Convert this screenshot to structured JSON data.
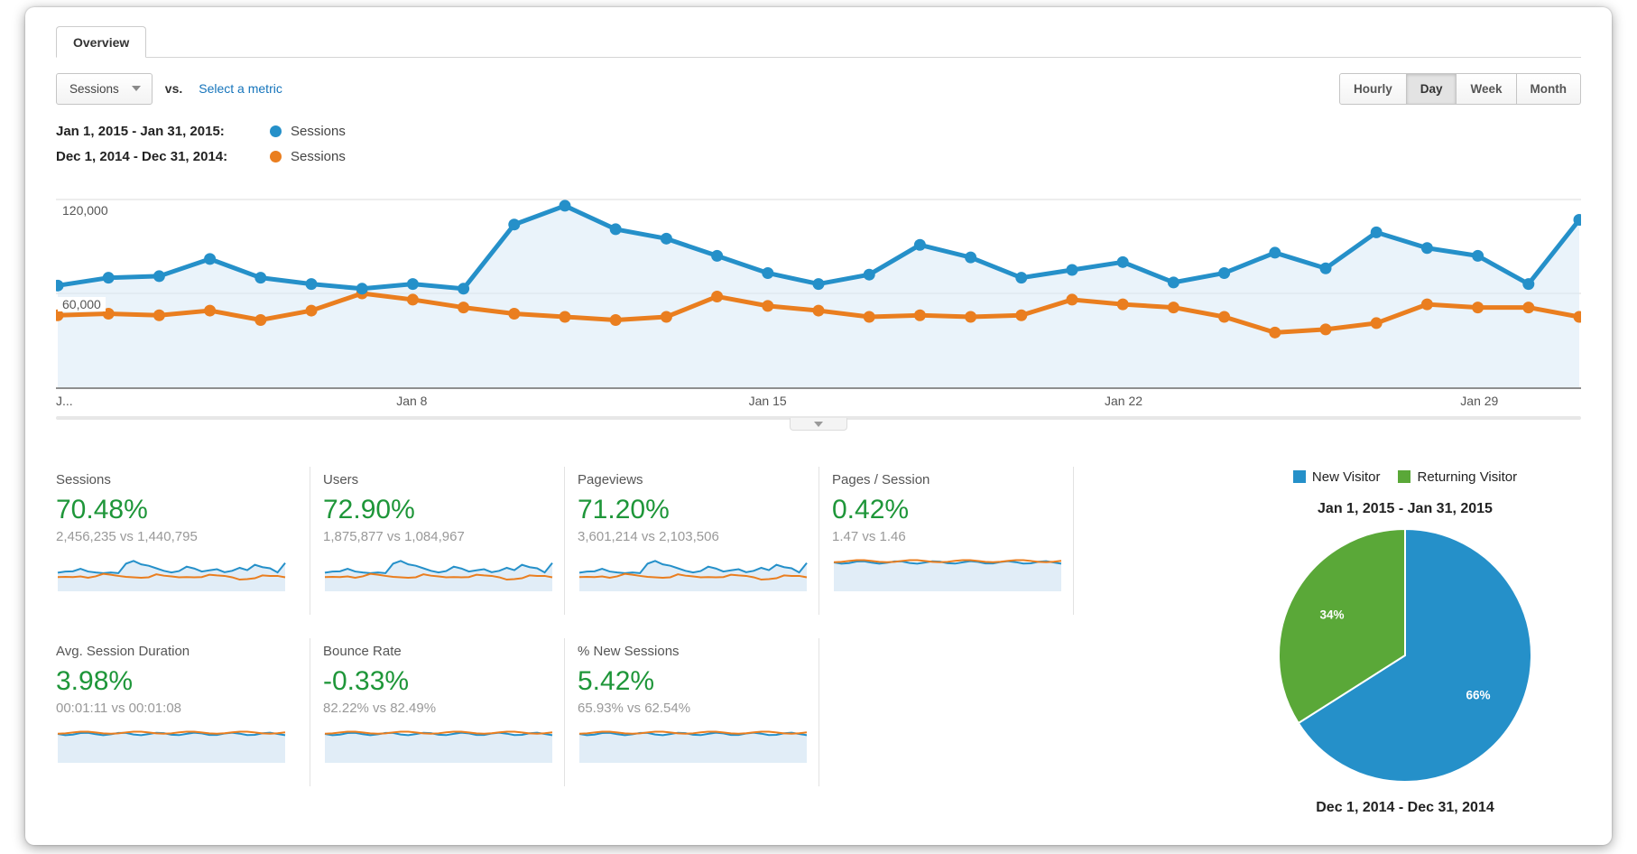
{
  "tab": {
    "label": "Overview"
  },
  "controls": {
    "metric_selector": "Sessions",
    "vs_label": "vs.",
    "select_metric_link": "Select a metric",
    "granularity": [
      "Hourly",
      "Day",
      "Week",
      "Month"
    ],
    "granularity_selected": "Day"
  },
  "colors": {
    "blue": "#2590c9",
    "orange": "#ea7e1f",
    "green": "#5aa838",
    "green_text": "#1e9639",
    "area_fill": "#d9e9f5",
    "grid": "#ededed"
  },
  "legend": [
    {
      "range": "Jan 1, 2015 - Jan 31, 2015:",
      "series": "Sessions",
      "color": "#2590c9"
    },
    {
      "range": "Dec 1, 2014 - Dec 31, 2014:",
      "series": "Sessions",
      "color": "#ea7e1f"
    }
  ],
  "chart_data": [
    {
      "type": "line",
      "title": "Sessions by day, Jan 1 2015 - Jan 31 2015 vs Dec 1 2014 - Dec 31 2014",
      "x": [
        1,
        2,
        3,
        4,
        5,
        6,
        7,
        8,
        9,
        10,
        11,
        12,
        13,
        14,
        15,
        16,
        17,
        18,
        19,
        20,
        21,
        22,
        23,
        24,
        25,
        26,
        27,
        28,
        29,
        30,
        31
      ],
      "series": [
        {
          "name": "Jan 1, 2015 - Jan 31, 2015 Sessions",
          "color": "#2590c9",
          "values": [
            65000,
            70000,
            71000,
            82000,
            70000,
            66000,
            63000,
            66000,
            63000,
            104000,
            116000,
            101000,
            95000,
            84000,
            73000,
            66000,
            72000,
            91000,
            83000,
            70000,
            75000,
            80000,
            67000,
            73000,
            86000,
            76000,
            99000,
            89000,
            84000,
            66000,
            107000
          ]
        },
        {
          "name": "Dec 1, 2014 - Dec 31, 2014 Sessions",
          "color": "#ea7e1f",
          "values": [
            46000,
            47000,
            46000,
            49000,
            43000,
            49000,
            60000,
            56000,
            51000,
            47000,
            45000,
            43000,
            45000,
            58000,
            52000,
            49000,
            45000,
            46000,
            45000,
            46000,
            56000,
            53000,
            51000,
            45000,
            35000,
            37000,
            41000,
            53000,
            51000,
            51000,
            45000
          ]
        }
      ],
      "ylim": [
        0,
        140000
      ],
      "yticks": [
        {
          "value": 60000,
          "label": "60,000"
        },
        {
          "value": 120000,
          "label": "120,000"
        }
      ],
      "x_ticks": [
        {
          "label": "J...",
          "day": 1
        },
        {
          "label": "Jan 8",
          "day": 8
        },
        {
          "label": "Jan 15",
          "day": 15
        },
        {
          "label": "Jan 22",
          "day": 22
        },
        {
          "label": "Jan 29",
          "day": 29
        }
      ],
      "grid": true,
      "legend_position": "top-left"
    },
    {
      "type": "pie",
      "title": "Jan 1, 2015 - Jan 31, 2015",
      "labels": [
        "New Visitor",
        "Returning Visitor"
      ],
      "values": [
        66,
        34
      ],
      "value_labels": [
        "66%",
        "34%"
      ],
      "colors": [
        "#2590c9",
        "#5aa838"
      ],
      "legend_position": "top"
    }
  ],
  "cards": [
    {
      "title": "Sessions",
      "pct": "70.48%",
      "vals": "2,456,235 vs 1,440,795",
      "spark": "main"
    },
    {
      "title": "Users",
      "pct": "72.90%",
      "vals": "1,875,877 vs 1,084,967",
      "spark": "main"
    },
    {
      "title": "Pageviews",
      "pct": "71.20%",
      "vals": "3,601,214 vs 2,103,506",
      "spark": "main"
    },
    {
      "title": "Pages / Session",
      "pct": "0.42%",
      "vals": "1.47 vs 1.46",
      "spark": "flat"
    },
    {
      "title": "Avg. Session Duration",
      "pct": "3.98%",
      "vals": "00:01:11 vs 00:01:08",
      "spark": "flat"
    },
    {
      "title": "Bounce Rate",
      "pct": "-0.33%",
      "vals": "82.22% vs 82.49%",
      "spark": "flat"
    },
    {
      "title": "% New Sessions",
      "pct": "5.42%",
      "vals": "65.93% vs 62.54%",
      "spark": "flat"
    }
  ],
  "pie": {
    "legend": [
      {
        "label": "New Visitor",
        "color": "#2590c9"
      },
      {
        "label": "Returning Visitor",
        "color": "#5aa838"
      }
    ],
    "title": "Jan 1, 2015 - Jan 31, 2015",
    "slices": [
      {
        "label": "New Visitor",
        "pct": 66,
        "text": "66%",
        "color": "#2590c9"
      },
      {
        "label": "Returning Visitor",
        "pct": 34,
        "text": "34%",
        "color": "#5aa838"
      }
    ],
    "footer": "Dec 1, 2014 - Dec 31, 2014"
  }
}
